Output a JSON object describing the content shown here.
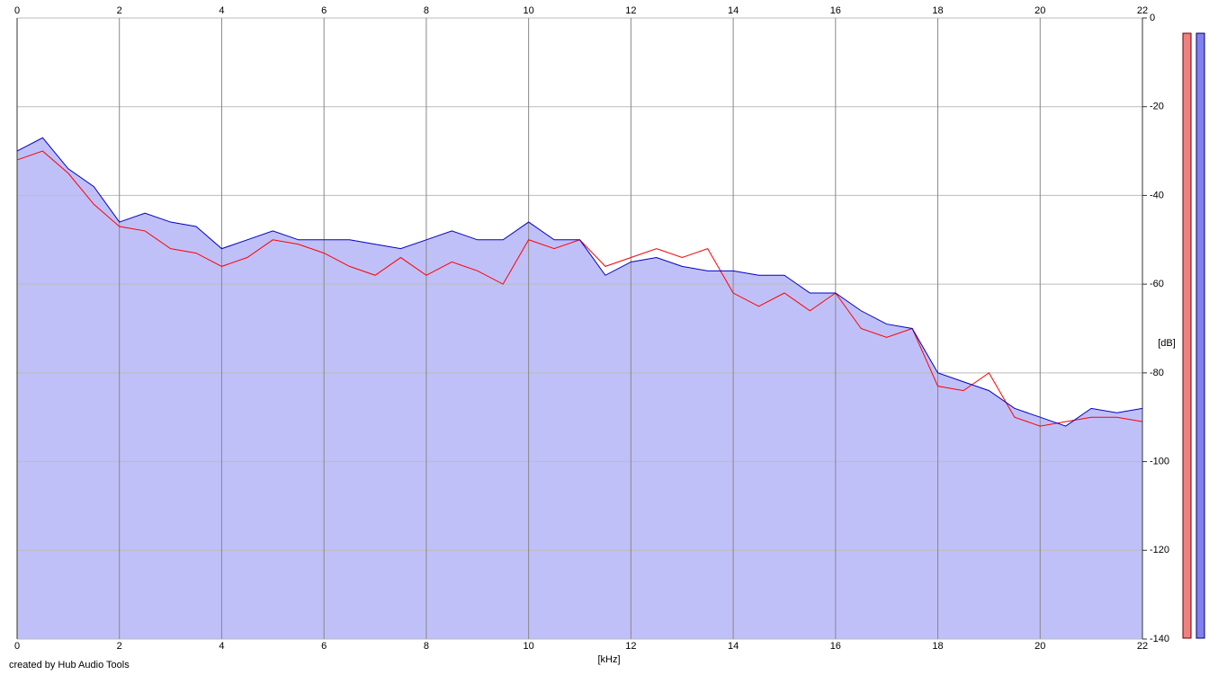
{
  "chart_data": {
    "type": "line",
    "x_label": "[kHz]",
    "y_label": "[dB]",
    "annotation": "created by Hub Audio Tools",
    "x": [
      0,
      0.5,
      1,
      1.5,
      2,
      2.5,
      3,
      3.5,
      4,
      4.5,
      5,
      5.5,
      6,
      6.5,
      7,
      7.5,
      8,
      8.5,
      9,
      9.5,
      10,
      10.5,
      11,
      11.5,
      12,
      12.5,
      13,
      13.5,
      14,
      14.5,
      15,
      15.5,
      16,
      16.5,
      17,
      17.5,
      18,
      18.5,
      19,
      19.5,
      20,
      20.5,
      21,
      21.5,
      22
    ],
    "series": [
      {
        "color": "#ff0000",
        "values": [
          -32,
          -30,
          -35,
          -42,
          -47,
          -48,
          -52,
          -53,
          -56,
          -54,
          -50,
          -51,
          -53,
          -56,
          -58,
          -54,
          -58,
          -55,
          -57,
          -60,
          -50,
          -52,
          -50,
          -56,
          -54,
          -52,
          -54,
          -52,
          -62,
          -65,
          -62,
          -66,
          -62,
          -70,
          -72,
          -70,
          -83,
          -84,
          -80,
          -90,
          -92,
          -91,
          -90,
          -90,
          -91
        ]
      },
      {
        "color": "#0000c8",
        "fill": "#c0c0f8",
        "values": [
          -30,
          -27,
          -34,
          -38,
          -46,
          -44,
          -46,
          -47,
          -52,
          -50,
          -48,
          -50,
          -50,
          -50,
          -51,
          -52,
          -50,
          -48,
          -50,
          -50,
          -46,
          -50,
          -50,
          -58,
          -55,
          -54,
          -56,
          -57,
          -57,
          -58,
          -58,
          -62,
          -62,
          -66,
          -69,
          -70,
          -80,
          -82,
          -84,
          -88,
          -90,
          -92,
          -88,
          -89,
          -88
        ]
      }
    ],
    "xlim": [
      0,
      22
    ],
    "xticks": [
      0,
      2,
      4,
      6,
      8,
      10,
      12,
      14,
      16,
      18,
      20,
      22
    ],
    "ylim": [
      -140,
      0
    ],
    "yticks": [
      0,
      -20,
      -40,
      -60,
      -80,
      -100,
      -120,
      -140
    ],
    "grid": true
  }
}
